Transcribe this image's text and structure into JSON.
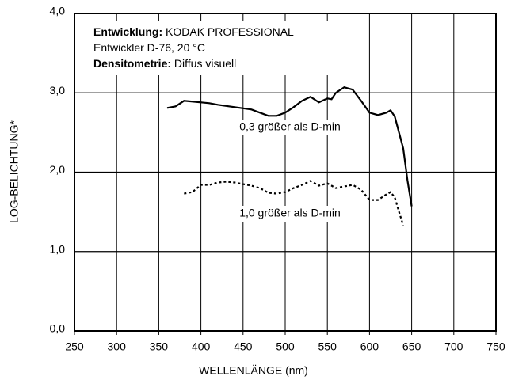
{
  "chart_data": {
    "type": "line",
    "xlabel": "WELLENLÄNGE (nm)",
    "ylabel": "LOG-BELICHTUNG*",
    "annotation": [
      {
        "label": "Entwicklung:",
        "text": "KODAK PROFESSIONAL"
      },
      {
        "text": "Entwickler D-76, 20 °C"
      },
      {
        "label": "Densitometrie:",
        "text": "Diffus visuell"
      }
    ],
    "xlim": [
      250,
      750
    ],
    "xticks": [
      250,
      300,
      350,
      400,
      450,
      500,
      550,
      600,
      650,
      700,
      750
    ],
    "ylim": [
      0,
      4
    ],
    "yticks": [
      {
        "value": 0,
        "label": "0,0"
      },
      {
        "value": 1,
        "label": "1,0"
      },
      {
        "value": 2,
        "label": "2,0"
      },
      {
        "value": 3,
        "label": "3,0"
      },
      {
        "value": 4,
        "label": "4,0"
      }
    ],
    "grid": true,
    "series": [
      {
        "name": "0,3 größer als D-min",
        "color": "#000000",
        "dash": "solid",
        "x": [
          360,
          370,
          380,
          390,
          400,
          410,
          420,
          440,
          460,
          470,
          480,
          490,
          500,
          510,
          520,
          530,
          540,
          550,
          555,
          560,
          570,
          580,
          590,
          600,
          610,
          620,
          625,
          630,
          640,
          645,
          650
        ],
        "values": [
          2.81,
          2.83,
          2.9,
          2.89,
          2.88,
          2.87,
          2.85,
          2.82,
          2.79,
          2.75,
          2.71,
          2.71,
          2.75,
          2.82,
          2.9,
          2.95,
          2.88,
          2.93,
          2.92,
          3.0,
          3.07,
          3.04,
          2.9,
          2.75,
          2.72,
          2.75,
          2.78,
          2.7,
          2.3,
          1.9,
          1.57
        ]
      },
      {
        "name": "1,0 größer als D-min",
        "color": "#000000",
        "dash": "dotted",
        "x": [
          380,
          390,
          400,
          410,
          420,
          430,
          440,
          450,
          460,
          470,
          480,
          490,
          500,
          510,
          520,
          530,
          540,
          550,
          560,
          570,
          580,
          590,
          600,
          610,
          620,
          625,
          630,
          635,
          640
        ],
        "values": [
          1.73,
          1.75,
          1.84,
          1.84,
          1.87,
          1.88,
          1.87,
          1.85,
          1.83,
          1.8,
          1.74,
          1.73,
          1.75,
          1.8,
          1.84,
          1.89,
          1.83,
          1.86,
          1.8,
          1.82,
          1.84,
          1.78,
          1.65,
          1.65,
          1.72,
          1.75,
          1.68,
          1.5,
          1.33
        ]
      }
    ]
  }
}
